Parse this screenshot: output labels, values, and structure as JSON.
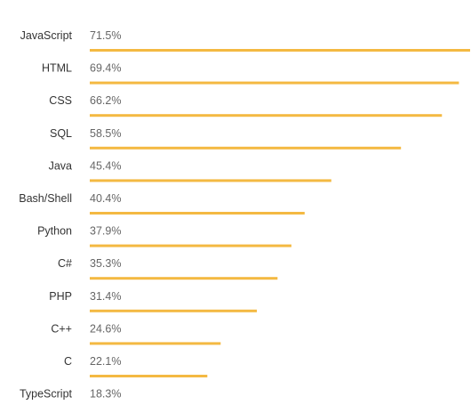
{
  "chart_data": {
    "type": "bar",
    "orientation": "horizontal",
    "categories": [
      "JavaScript",
      "HTML",
      "CSS",
      "SQL",
      "Java",
      "Bash/Shell",
      "Python",
      "C#",
      "PHP",
      "C++",
      "C",
      "TypeScript"
    ],
    "values": [
      71.5,
      69.4,
      66.2,
      58.5,
      45.4,
      40.4,
      37.9,
      35.3,
      31.4,
      24.6,
      22.1,
      18.3
    ],
    "value_labels": [
      "71.5%",
      "69.4%",
      "66.2%",
      "58.5%",
      "45.4%",
      "40.4%",
      "37.9%",
      "35.3%",
      "31.4%",
      "24.6%",
      "22.1%",
      "18.3%"
    ],
    "unit": "%",
    "xlim": [
      0,
      71.5
    ],
    "title": "",
    "xlabel": "",
    "ylabel": "",
    "grid": false,
    "legend": "none",
    "bar_color": "#f4b942"
  }
}
